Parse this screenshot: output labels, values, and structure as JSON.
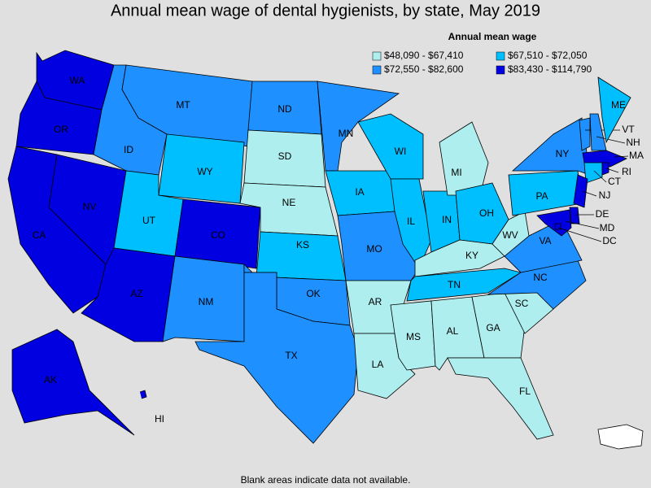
{
  "title": "Annual mean wage of dental hygienists, by state, May 2019",
  "legend": {
    "title": "Annual mean wage",
    "bins": [
      {
        "label": "$48,090 - $67,410",
        "color": "#aeeeee"
      },
      {
        "label": "$67,510 - $72,050",
        "color": "#00bfff"
      },
      {
        "label": "$72,550 - $82,600",
        "color": "#1e90ff"
      },
      {
        "label": "$83,430 - $114,790",
        "color": "#0000e0"
      }
    ]
  },
  "states": [
    {
      "abbr": "WA",
      "bin": 3
    },
    {
      "abbr": "OR",
      "bin": 3
    },
    {
      "abbr": "CA",
      "bin": 3
    },
    {
      "abbr": "NV",
      "bin": 3
    },
    {
      "abbr": "ID",
      "bin": 2
    },
    {
      "abbr": "MT",
      "bin": 2
    },
    {
      "abbr": "WY",
      "bin": 1
    },
    {
      "abbr": "UT",
      "bin": 1
    },
    {
      "abbr": "CO",
      "bin": 3
    },
    {
      "abbr": "AZ",
      "bin": 3
    },
    {
      "abbr": "NM",
      "bin": 2
    },
    {
      "abbr": "ND",
      "bin": 2
    },
    {
      "abbr": "SD",
      "bin": 0
    },
    {
      "abbr": "NE",
      "bin": 0
    },
    {
      "abbr": "KS",
      "bin": 1
    },
    {
      "abbr": "OK",
      "bin": 2
    },
    {
      "abbr": "TX",
      "bin": 2
    },
    {
      "abbr": "MN",
      "bin": 2
    },
    {
      "abbr": "IA",
      "bin": 1
    },
    {
      "abbr": "MO",
      "bin": 2
    },
    {
      "abbr": "AR",
      "bin": 0
    },
    {
      "abbr": "LA",
      "bin": 0
    },
    {
      "abbr": "WI",
      "bin": 1
    },
    {
      "abbr": "IL",
      "bin": 1
    },
    {
      "abbr": "IN",
      "bin": 1
    },
    {
      "abbr": "MI",
      "bin": 0
    },
    {
      "abbr": "OH",
      "bin": 1
    },
    {
      "abbr": "KY",
      "bin": 0
    },
    {
      "abbr": "TN",
      "bin": 1
    },
    {
      "abbr": "MS",
      "bin": 0
    },
    {
      "abbr": "AL",
      "bin": 0
    },
    {
      "abbr": "GA",
      "bin": 0
    },
    {
      "abbr": "FL",
      "bin": 0
    },
    {
      "abbr": "SC",
      "bin": 0
    },
    {
      "abbr": "NC",
      "bin": 2
    },
    {
      "abbr": "VA",
      "bin": 2
    },
    {
      "abbr": "WV",
      "bin": 0
    },
    {
      "abbr": "PA",
      "bin": 1
    },
    {
      "abbr": "NY",
      "bin": 2
    },
    {
      "abbr": "VT",
      "bin": 2
    },
    {
      "abbr": "NH",
      "bin": 2
    },
    {
      "abbr": "ME",
      "bin": 1
    },
    {
      "abbr": "MA",
      "bin": 3
    },
    {
      "abbr": "CT",
      "bin": 1
    },
    {
      "abbr": "RI",
      "bin": 3
    },
    {
      "abbr": "NJ",
      "bin": 3
    },
    {
      "abbr": "DE",
      "bin": 3
    },
    {
      "abbr": "MD",
      "bin": 3
    },
    {
      "abbr": "DC",
      "bin": 3
    },
    {
      "abbr": "AK",
      "bin": 3
    },
    {
      "abbr": "HI",
      "bin": 3
    }
  ],
  "footnote": "Blank areas indicate data not available."
}
